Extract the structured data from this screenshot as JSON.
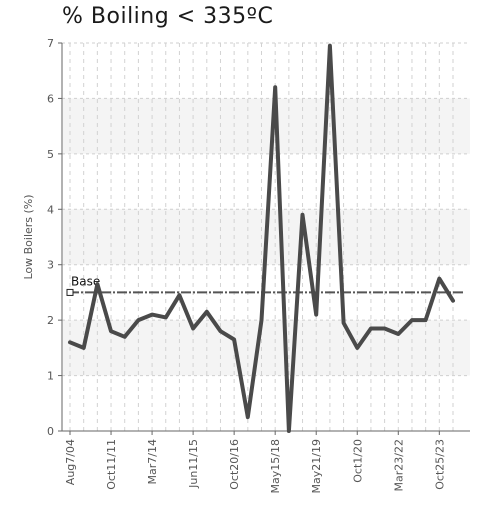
{
  "chart_data": {
    "type": "line",
    "title": "% Boiling < 335ºC",
    "xlabel": "",
    "ylabel": "Low Boilers (%)",
    "ylim": [
      0,
      7
    ],
    "yticks": [
      0,
      1,
      2,
      3,
      4,
      5,
      6,
      7
    ],
    "x_tick_labels": [
      "Aug7/04",
      "Oct11/11",
      "Mar7/14",
      "Jun11/15",
      "Oct20/16",
      "May15/18",
      "May21/19",
      "Oct1/20",
      "Mar23/22",
      "Oct25/23"
    ],
    "grid": true,
    "reference_line": {
      "label": "Base",
      "value": 2.5,
      "color": "#555555"
    },
    "series": [
      {
        "color": "#4a4a4a",
        "values": [
          1.6,
          1.5,
          2.65,
          1.8,
          1.7,
          2.0,
          2.1,
          2.05,
          2.45,
          1.85,
          2.15,
          1.8,
          1.65,
          0.25,
          2.0,
          6.2,
          0.0,
          3.9,
          2.1,
          6.95,
          1.95,
          1.5,
          1.85,
          1.85,
          1.75,
          2.0,
          2.0,
          2.75,
          2.35
        ]
      }
    ]
  }
}
